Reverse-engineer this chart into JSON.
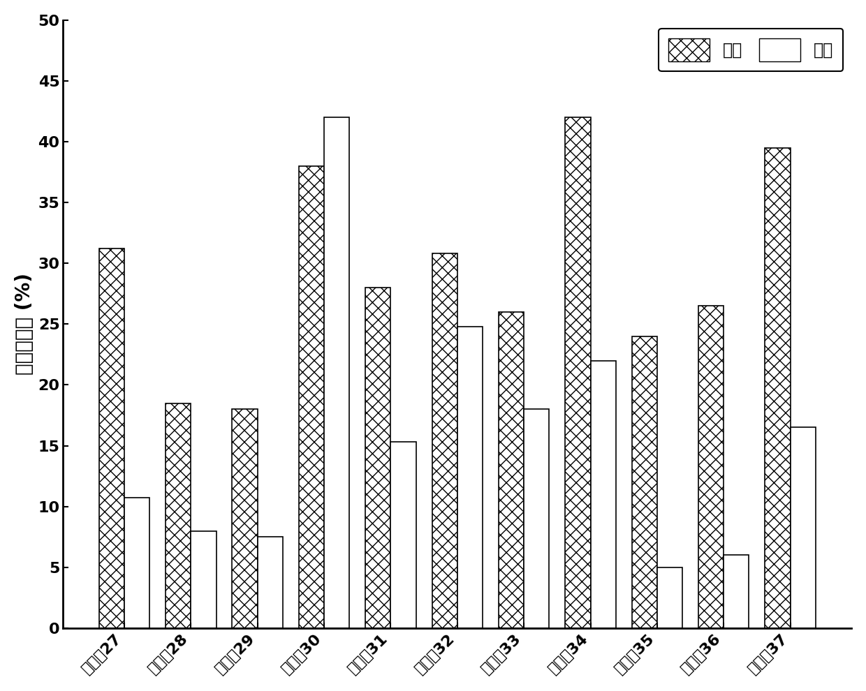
{
  "categories": [
    "实施例27",
    "实施例28",
    "实施例29",
    "实施例30",
    "实施例31",
    "实施例32",
    "实施例33",
    "实施例34",
    "实施例35",
    "实施例36",
    "实施例37"
  ],
  "methane": [
    31.2,
    18.5,
    18.0,
    38.0,
    28.0,
    30.8,
    26.0,
    42.0,
    24.0,
    26.5,
    39.5
  ],
  "ethylene": [
    10.7,
    8.0,
    7.5,
    42.0,
    15.3,
    24.8,
    18.0,
    22.0,
    5.0,
    6.0,
    16.5
  ],
  "ylabel": "法拉第效率 (%)",
  "ylim": [
    0,
    50
  ],
  "yticks": [
    0,
    5,
    10,
    15,
    20,
    25,
    30,
    35,
    40,
    45,
    50
  ],
  "legend_methane": "甲烷",
  "legend_ethylene": "乙烯",
  "bar_width": 0.38,
  "methane_hatch": "xx",
  "ethylene_hatch": "===",
  "edge_color": "black",
  "background_color": "white",
  "font_size_label": 20,
  "font_size_tick": 16,
  "font_size_legend": 17
}
